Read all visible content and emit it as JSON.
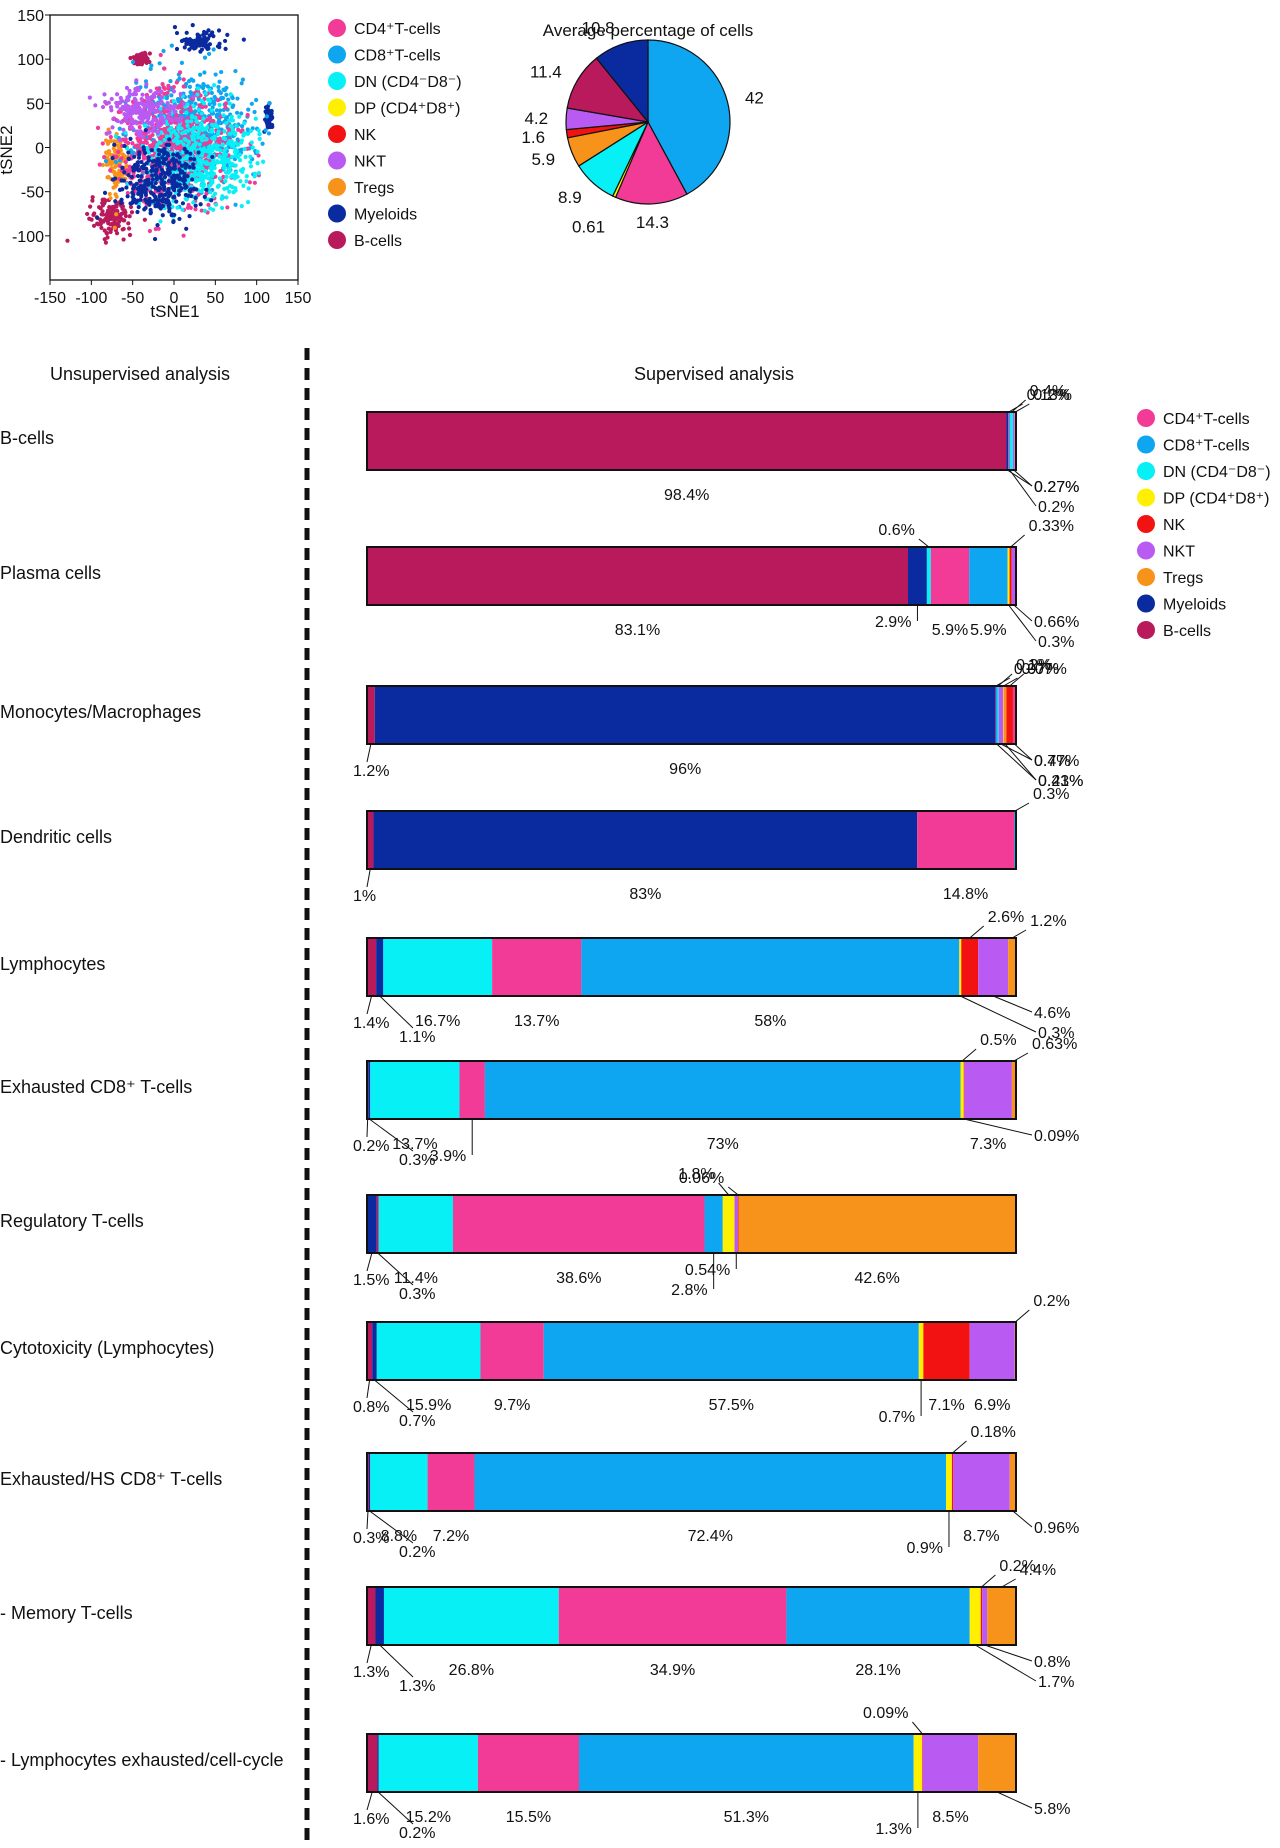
{
  "colors": {
    "CD4": "#f23a97",
    "CD8": "#0ea6f0",
    "DN": "#06f0f6",
    "DP": "#ffef00",
    "NK": "#f21212",
    "NKT": "#b95af3",
    "Tregs": "#f7931a",
    "Myeloids": "#0a2a9f",
    "Bcells": "#b81a5c"
  },
  "legend": [
    {
      "key": "CD4",
      "label": "CD4⁺T-cells"
    },
    {
      "key": "CD8",
      "label": "CD8⁺T-cells"
    },
    {
      "key": "DN",
      "label": "DN (CD4⁻D8⁻)"
    },
    {
      "key": "DP",
      "label": "DP (CD4⁺D8⁺)"
    },
    {
      "key": "NK",
      "label": "NK"
    },
    {
      "key": "NKT",
      "label": "NKT"
    },
    {
      "key": "Tregs",
      "label": "Tregs"
    },
    {
      "key": "Myeloids",
      "label": "Myeloids"
    },
    {
      "key": "Bcells",
      "label": "B-cells"
    }
  ],
  "headers": {
    "left": "Unsupervised analysis",
    "right": "Supervised analysis"
  },
  "chart_data": [
    {
      "type": "scatter",
      "xlabel": "tSNE1",
      "ylabel": "tSNE2",
      "xlim": [
        -150,
        150
      ],
      "ylim": [
        -150,
        150
      ],
      "xticks": [
        "-150",
        "-100",
        "-50",
        "0",
        "50",
        "100",
        "150"
      ],
      "yticks": [
        "150",
        "100",
        "50",
        "0",
        "-50",
        "-100"
      ],
      "clusters": [
        {
          "key": "Myeloids",
          "center": [
            30,
            120
          ],
          "spread": [
            20,
            8
          ]
        },
        {
          "key": "Bcells",
          "center": [
            -40,
            100
          ],
          "spread": [
            8,
            5
          ]
        },
        {
          "key": "Myeloids",
          "center": [
            115,
            35
          ],
          "spread": [
            3,
            7
          ]
        },
        {
          "key": "Bcells",
          "center": [
            -75,
            -80
          ],
          "spread": [
            18,
            15
          ]
        },
        {
          "key": "Tregs",
          "center": [
            -70,
            -20
          ],
          "spread": [
            10,
            25
          ]
        },
        {
          "key": "CD8",
          "center": [
            20,
            20
          ],
          "spread": [
            50,
            45
          ]
        },
        {
          "key": "CD4",
          "center": [
            0,
            0
          ],
          "spread": [
            50,
            45
          ]
        },
        {
          "key": "DN",
          "center": [
            30,
            -10
          ],
          "spread": [
            45,
            40
          ]
        },
        {
          "key": "NKT",
          "center": [
            -40,
            40
          ],
          "spread": [
            30,
            20
          ]
        },
        {
          "key": "Myeloids",
          "center": [
            -20,
            -40
          ],
          "spread": [
            35,
            30
          ]
        }
      ]
    },
    {
      "type": "pie",
      "title": "Average percentage of cells",
      "slices": [
        {
          "key": "CD8",
          "value": 42,
          "label": "42"
        },
        {
          "key": "CD4",
          "value": 14.3,
          "label": "14.3"
        },
        {
          "key": "DP",
          "value": 0.61,
          "label": "0.61"
        },
        {
          "key": "DN",
          "value": 8.9,
          "label": "8.9"
        },
        {
          "key": "Tregs",
          "value": 5.9,
          "label": "5.9"
        },
        {
          "key": "NK",
          "value": 1.6,
          "label": "1.6"
        },
        {
          "key": "NKT",
          "value": 4.2,
          "label": "4.2"
        },
        {
          "key": "Bcells",
          "value": 11.4,
          "label": "11.4"
        },
        {
          "key": "Myeloids",
          "value": 10.8,
          "label": "10.8"
        }
      ]
    },
    {
      "type": "bar",
      "orientation": "horizontal-stacked",
      "rows": [
        {
          "name": "B-cells",
          "segments": [
            {
              "key": "Bcells",
              "value": 98.4,
              "label": "98.4%"
            },
            {
              "key": "Myeloids",
              "value": 0.27,
              "label": "0.27%"
            },
            {
              "key": "CD4",
              "value": 0.13,
              "label": "0.13%"
            },
            {
              "key": "CD8",
              "value": 0.2,
              "label": "0.2%"
            },
            {
              "key": "DN",
              "value": 0.4,
              "label": "0.4%"
            },
            {
              "key": "NKT",
              "value": 0.27,
              "label": "0.27%"
            },
            {
              "key": "Tregs",
              "value": 0.2,
              "label": "0.2%"
            }
          ]
        },
        {
          "name": "Plasma cells",
          "segments": [
            {
              "key": "Bcells",
              "value": 83.1,
              "label": "83.1%"
            },
            {
              "key": "Myeloids",
              "value": 2.9,
              "label": "2.9%"
            },
            {
              "key": "DN",
              "value": 0.6,
              "label": "0.6%"
            },
            {
              "key": "CD4",
              "value": 5.9,
              "label": "5.9%"
            },
            {
              "key": "CD8",
              "value": 5.9,
              "label": "5.9%"
            },
            {
              "key": "DP",
              "value": 0.3,
              "label": "0.3%"
            },
            {
              "key": "NK",
              "value": 0.33,
              "label": "0.33%"
            },
            {
              "key": "NKT",
              "value": 0.66,
              "label": "0.66%"
            }
          ]
        },
        {
          "name": "Monocytes/Macrophages",
          "segments": [
            {
              "key": "Bcells",
              "value": 1.2,
              "label": "1.2%"
            },
            {
              "key": "Myeloids",
              "value": 96,
              "label": "96%"
            },
            {
              "key": "CD4",
              "value": 0.07,
              "label": "0.07%"
            },
            {
              "key": "CD8",
              "value": 0.21,
              "label": "0.21%"
            },
            {
              "key": "DN",
              "value": 0.2,
              "label": "0.2%"
            },
            {
              "key": "NKT",
              "value": 0.7,
              "label": "0.7%"
            },
            {
              "key": "DP",
              "value": 0.07,
              "label": "0.07%"
            },
            {
              "key": "Tregs",
              "value": 0.43,
              "label": "0.43%"
            },
            {
              "key": "NK",
              "value": 1,
              "label": "1%"
            },
            {
              "key": "CD4",
              "value": 0.47,
              "label": "0.47%"
            }
          ]
        },
        {
          "name": "Dendritic cells",
          "segments": [
            {
              "key": "Bcells",
              "value": 1,
              "label": "1%"
            },
            {
              "key": "Myeloids",
              "value": 83,
              "label": "83%"
            },
            {
              "key": "CD4",
              "value": 14.8,
              "label": "14.8%"
            },
            {
              "key": "CD8",
              "value": 0.3,
              "label": "0.3%"
            }
          ]
        },
        {
          "name": "Lymphocytes",
          "segments": [
            {
              "key": "Bcells",
              "value": 1.4,
              "label": "1.4%"
            },
            {
              "key": "Myeloids",
              "value": 1.1,
              "label": "1.1%"
            },
            {
              "key": "DN",
              "value": 16.7,
              "label": "16.7%"
            },
            {
              "key": "CD4",
              "value": 13.7,
              "label": "13.7%"
            },
            {
              "key": "CD8",
              "value": 58,
              "label": "58%"
            },
            {
              "key": "DP",
              "value": 0.3,
              "label": "0.3%"
            },
            {
              "key": "NK",
              "value": 2.6,
              "label": "2.6%"
            },
            {
              "key": "NKT",
              "value": 4.6,
              "label": "4.6%"
            },
            {
              "key": "Tregs",
              "value": 1.2,
              "label": "1.2%"
            }
          ]
        },
        {
          "name": "Exhausted CD8⁺ T-cells",
          "segments": [
            {
              "key": "Bcells",
              "value": 0.2,
              "label": "0.2%"
            },
            {
              "key": "Myeloids",
              "value": 0.3,
              "label": "0.3%"
            },
            {
              "key": "DN",
              "value": 13.7,
              "label": "13.7%"
            },
            {
              "key": "CD4",
              "value": 3.9,
              "label": "3.9%"
            },
            {
              "key": "CD8",
              "value": 73,
              "label": "73%"
            },
            {
              "key": "DP",
              "value": 0.5,
              "label": "0.5%"
            },
            {
              "key": "NK",
              "value": 0.09,
              "label": "0.09%"
            },
            {
              "key": "NKT",
              "value": 7.3,
              "label": "7.3%"
            },
            {
              "key": "Tregs",
              "value": 0.63,
              "label": "0.63%"
            }
          ]
        },
        {
          "name": "Regulatory T-cells",
          "segments": [
            {
              "key": "Myeloids",
              "value": 1.5,
              "label": "1.5%"
            },
            {
              "key": "Bcells",
              "value": 0.3,
              "label": "0.3%"
            },
            {
              "key": "DN",
              "value": 11.4,
              "label": "11.4%"
            },
            {
              "key": "CD4",
              "value": 38.6,
              "label": "38.6%"
            },
            {
              "key": "CD8",
              "value": 2.8,
              "label": "2.8%"
            },
            {
              "key": "DP",
              "value": 1.8,
              "label": "1.8%"
            },
            {
              "key": "NKT",
              "value": 0.54,
              "label": "0.54%"
            },
            {
              "key": "NK",
              "value": 0.06,
              "label": "0.06%"
            },
            {
              "key": "Tregs",
              "value": 42.6,
              "label": "42.6%"
            }
          ]
        },
        {
          "name": "Cytotoxicity (Lymphocytes)",
          "segments": [
            {
              "key": "Bcells",
              "value": 0.8,
              "label": "0.8%"
            },
            {
              "key": "Myeloids",
              "value": 0.7,
              "label": "0.7%"
            },
            {
              "key": "DN",
              "value": 15.9,
              "label": "15.9%"
            },
            {
              "key": "CD4",
              "value": 9.7,
              "label": "9.7%"
            },
            {
              "key": "CD8",
              "value": 57.5,
              "label": "57.5%"
            },
            {
              "key": "DP",
              "value": 0.7,
              "label": "0.7%"
            },
            {
              "key": "NK",
              "value": 7.1,
              "label": "7.1%"
            },
            {
              "key": "NKT",
              "value": 6.9,
              "label": "6.9%"
            },
            {
              "key": "Tregs",
              "value": 0.2,
              "label": "0.2%"
            }
          ]
        },
        {
          "name": "Exhausted/HS CD8⁺ T-cells",
          "segments": [
            {
              "key": "Bcells",
              "value": 0.3,
              "label": "0.3%"
            },
            {
              "key": "Myeloids",
              "value": 0.2,
              "label": "0.2%"
            },
            {
              "key": "DN",
              "value": 8.8,
              "label": "8.8%"
            },
            {
              "key": "CD4",
              "value": 7.2,
              "label": "7.2%"
            },
            {
              "key": "CD8",
              "value": 72.4,
              "label": "72.4%"
            },
            {
              "key": "DP",
              "value": 0.9,
              "label": "0.9%"
            },
            {
              "key": "NK",
              "value": 0.18,
              "label": "0.18%"
            },
            {
              "key": "NKT",
              "value": 8.7,
              "label": "8.7%"
            },
            {
              "key": "Tregs",
              "value": 0.96,
              "label": "0.96%"
            }
          ]
        },
        {
          "name": "- Memory T-cells",
          "segments": [
            {
              "key": "Bcells",
              "value": 1.3,
              "label": "1.3%"
            },
            {
              "key": "Myeloids",
              "value": 1.3,
              "label": "1.3%"
            },
            {
              "key": "DN",
              "value": 26.8,
              "label": "26.8%"
            },
            {
              "key": "CD4",
              "value": 34.9,
              "label": "34.9%"
            },
            {
              "key": "CD8",
              "value": 28.1,
              "label": "28.1%"
            },
            {
              "key": "DP",
              "value": 1.7,
              "label": "1.7%"
            },
            {
              "key": "NK",
              "value": 0.2,
              "label": "0.2%"
            },
            {
              "key": "NKT",
              "value": 0.8,
              "label": "0.8%"
            },
            {
              "key": "Tregs",
              "value": 4.4,
              "label": "4.4%"
            }
          ]
        },
        {
          "name": "- Lymphocytes exhausted/cell-cycle",
          "segments": [
            {
              "key": "Bcells",
              "value": 1.6,
              "label": "1.6%"
            },
            {
              "key": "Myeloids",
              "value": 0.2,
              "label": "0.2%"
            },
            {
              "key": "DN",
              "value": 15.2,
              "label": "15.2%"
            },
            {
              "key": "CD4",
              "value": 15.5,
              "label": "15.5%"
            },
            {
              "key": "CD8",
              "value": 51.3,
              "label": "51.3%"
            },
            {
              "key": "DP",
              "value": 1.3,
              "label": "1.3%"
            },
            {
              "key": "NK",
              "value": 0.09,
              "label": "0.09%"
            },
            {
              "key": "NKT",
              "value": 8.5,
              "label": "8.5%"
            },
            {
              "key": "Tregs",
              "value": 5.8,
              "label": "5.8%"
            }
          ]
        }
      ]
    }
  ]
}
